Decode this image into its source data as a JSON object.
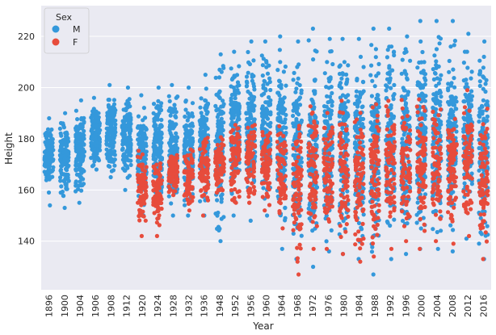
{
  "chart_data": {
    "type": "scatter",
    "subtype": "strip",
    "title": "",
    "xlabel": "Year",
    "ylabel": "Height",
    "ylim": [
      121,
      232
    ],
    "yticks": [
      140,
      160,
      180,
      200,
      220
    ],
    "grid": true,
    "legend": {
      "title": "Sex",
      "placement": "top-left",
      "entries": [
        {
          "label": "M",
          "color": "#3498db"
        },
        {
          "label": "F",
          "color": "#e74c3c"
        }
      ]
    },
    "categories": [
      "1896",
      "1900",
      "1904",
      "1906",
      "1908",
      "1912",
      "1920",
      "1924",
      "1928",
      "1932",
      "1936",
      "1948",
      "1952",
      "1956",
      "1960",
      "1964",
      "1968",
      "1972",
      "1976",
      "1980",
      "1984",
      "1988",
      "1992",
      "1996",
      "2000",
      "2004",
      "2008",
      "2012",
      "2016"
    ],
    "series": [
      {
        "name": "M",
        "color": "#3498db",
        "ranges": [
          [
            159,
            188
          ],
          [
            153,
            191
          ],
          [
            155,
            195
          ],
          [
            165,
            196
          ],
          [
            163,
            201
          ],
          [
            160,
            200
          ],
          [
            150,
            197
          ],
          [
            152,
            200
          ],
          [
            150,
            201
          ],
          [
            150,
            200
          ],
          [
            150,
            205
          ],
          [
            140,
            213
          ],
          [
            150,
            214
          ],
          [
            148,
            218
          ],
          [
            150,
            218
          ],
          [
            137,
            220
          ],
          [
            133,
            218
          ],
          [
            130,
            223
          ],
          [
            135,
            219
          ],
          [
            135,
            219
          ],
          [
            133,
            219
          ],
          [
            127,
            223
          ],
          [
            133,
            223
          ],
          [
            135,
            220
          ],
          [
            137,
            226
          ],
          [
            137,
            226
          ],
          [
            136,
            226
          ],
          [
            141,
            221
          ],
          [
            133,
            218
          ]
        ],
        "highlights": [
          [
            [
              188,
              188
            ],
            [
              176,
              176
            ],
            [
              159,
              159
            ],
            [
              154,
              154
            ]
          ],
          [
            [
              190,
              190
            ],
            [
              186,
              186
            ],
            [
              178,
              178
            ],
            [
              170,
              170
            ],
            [
              153,
              153
            ]
          ],
          [
            [
              195,
              195
            ],
            [
              188,
              188
            ],
            [
              177,
              177
            ],
            [
              165,
              165
            ],
            [
              155,
              155
            ]
          ],
          [
            [
              196,
              196
            ],
            [
              185,
              185
            ],
            [
              168,
              168
            ]
          ],
          [
            [
              201,
              201
            ],
            [
              188,
              188
            ],
            [
              172,
              172
            ],
            [
              165,
              165
            ]
          ],
          [
            [
              200,
              200
            ],
            [
              194,
              194
            ],
            [
              185,
              185
            ],
            [
              160,
              160
            ]
          ],
          [
            [
              197,
              197
            ],
            [
              180,
              180
            ],
            [
              162,
              162
            ],
            [
              150,
              150
            ]
          ],
          [
            [
              200,
              200
            ],
            [
              190,
              190
            ],
            [
              175,
              175
            ],
            [
              152,
              152
            ]
          ],
          [
            [
              201,
              201
            ],
            [
              185,
              185
            ],
            [
              170,
              170
            ],
            [
              150,
              150
            ]
          ],
          [
            [
              200,
              200
            ],
            [
              190,
              190
            ],
            [
              172,
              172
            ],
            [
              150,
              150
            ]
          ],
          [
            [
              205,
              205
            ],
            [
              195,
              195
            ],
            [
              178,
              178
            ],
            [
              150,
              150
            ]
          ],
          [
            [
              213,
              213
            ],
            [
              198,
              198
            ],
            [
              176,
              176
            ],
            [
              140,
              140
            ]
          ],
          [
            [
              214,
              214
            ],
            [
              200,
              200
            ],
            [
              180,
              180
            ],
            [
              150,
              150
            ]
          ],
          [
            [
              218,
              218
            ],
            [
              205,
              205
            ],
            [
              185,
              185
            ],
            [
              148,
              148
            ]
          ],
          [
            [
              218,
              218
            ],
            [
              208,
              208
            ],
            [
              188,
              188
            ],
            [
              150,
              150
            ]
          ],
          [
            [
              220,
              220
            ],
            [
              210,
              210
            ],
            [
              190,
              190
            ],
            [
              137,
              137
            ]
          ],
          [
            [
              218,
              218
            ],
            [
              209,
              209
            ],
            [
              185,
              185
            ],
            [
              133,
              133
            ]
          ],
          [
            [
              223,
              223
            ],
            [
              211,
              211
            ],
            [
              187,
              187
            ],
            [
              130,
              130
            ]
          ],
          [
            [
              219,
              219
            ],
            [
              210,
              210
            ],
            [
              190,
              190
            ],
            [
              136,
              136
            ]
          ],
          [
            [
              219,
              219
            ],
            [
              210,
              210
            ],
            [
              190,
              190
            ],
            [
              135,
              135
            ]
          ],
          [
            [
              219,
              219
            ],
            [
              212,
              212
            ],
            [
              190,
              190
            ],
            [
              133,
              133
            ]
          ],
          [
            [
              223,
              223
            ],
            [
              215,
              215
            ],
            [
              192,
              192
            ],
            [
              127,
              127
            ]
          ],
          [
            [
              223,
              223
            ],
            [
              216,
              216
            ],
            [
              192,
              192
            ],
            [
              133,
              133
            ]
          ],
          [
            [
              220,
              220
            ],
            [
              214,
              214
            ],
            [
              192,
              192
            ],
            [
              135,
              135
            ]
          ],
          [
            [
              226,
              226
            ],
            [
              218,
              218
            ],
            [
              195,
              195
            ],
            [
              137,
              137
            ]
          ],
          [
            [
              226,
              226
            ],
            [
              215,
              215
            ],
            [
              194,
              194
            ],
            [
              137,
              137
            ]
          ],
          [
            [
              226,
              226
            ],
            [
              216,
              216
            ],
            [
              195,
              195
            ],
            [
              136,
              136
            ]
          ],
          [
            [
              221,
              221
            ],
            [
              214,
              214
            ],
            [
              195,
              195
            ],
            [
              141,
              141
            ]
          ],
          [
            [
              218,
              218
            ],
            [
              212,
              212
            ],
            [
              195,
              195
            ],
            [
              133,
              133
            ]
          ]
        ]
      },
      {
        "name": "F",
        "color": "#e74c3c",
        "ranges": [
          null,
          null,
          null,
          null,
          null,
          null,
          [
            142,
            180
          ],
          [
            142,
            175
          ],
          [
            155,
            178
          ],
          [
            150,
            180
          ],
          [
            150,
            185
          ],
          [
            155,
            185
          ],
          [
            150,
            192
          ],
          [
            150,
            192
          ],
          [
            150,
            190
          ],
          [
            145,
            192
          ],
          [
            127,
            195
          ],
          [
            137,
            200
          ],
          [
            137,
            200
          ],
          [
            135,
            200
          ],
          [
            132,
            197
          ],
          [
            134,
            200
          ],
          [
            137,
            200
          ],
          [
            140,
            200
          ],
          [
            137,
            203
          ],
          [
            140,
            200
          ],
          [
            139,
            200
          ],
          [
            142,
            203
          ],
          [
            133,
            198
          ]
        ],
        "highlights": [
          null,
          null,
          null,
          null,
          null,
          null,
          [
            [
              142,
              142
            ]
          ],
          [
            [
              142,
              142
            ]
          ],
          [
            [
              158,
              158
            ]
          ],
          [
            [
              152,
              152
            ]
          ],
          [
            [
              150,
              150
            ]
          ],
          [
            [
              160,
              160
            ]
          ],
          [
            [
              155,
              155
            ]
          ],
          [
            [
              155,
              155
            ]
          ],
          [
            [
              152,
              152
            ]
          ],
          [
            [
              145,
              145
            ]
          ],
          [
            [
              127,
              127
            ]
          ],
          [
            [
              137,
              137
            ]
          ],
          [
            [
              137,
              137
            ]
          ],
          [
            [
              135,
              135
            ]
          ],
          [
            [
              132,
              132
            ]
          ],
          [
            [
              134,
              134
            ]
          ],
          [
            [
              137,
              137
            ]
          ],
          [
            [
              140,
              140
            ]
          ],
          [
            [
              137,
              137
            ]
          ],
          [
            [
              140,
              140
            ]
          ],
          [
            [
              139,
              139
            ]
          ],
          [
            [
              142,
              142
            ]
          ],
          [
            [
              133,
              133
            ]
          ]
        ]
      }
    ]
  }
}
